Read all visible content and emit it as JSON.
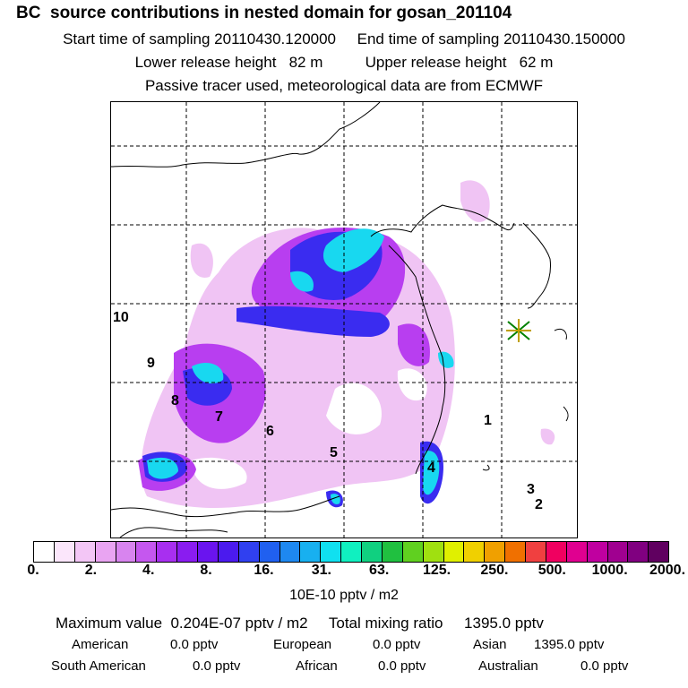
{
  "header": {
    "title": "BC  source contributions in nested domain for gosan_201104",
    "line2": "Start time of sampling 20110430.120000     End time of sampling 20110430.150000",
    "line3": "Lower release height   82 m          Upper release height   62 m",
    "line4": "Passive tracer used, meteorological data are from ECMWF"
  },
  "map": {
    "labels": [
      "10",
      "9",
      "8",
      "7",
      "6",
      "5",
      "4",
      "1",
      "3",
      "2"
    ],
    "receptor_marker": "star-marker"
  },
  "colorbar": {
    "colors": [
      "#ffffff",
      "#fbe6fb",
      "#f3c6f6",
      "#e9a4f2",
      "#d884ef",
      "#c557ef",
      "#a82ff0",
      "#8a1cf0",
      "#6a14ef",
      "#4b1aee",
      "#3040f0",
      "#2060f0",
      "#1e88f0",
      "#18b0f0",
      "#10e0f0",
      "#10f0c0",
      "#10d080",
      "#20c040",
      "#60d020",
      "#a0e010",
      "#e0f000",
      "#f0d000",
      "#f0a000",
      "#f07000",
      "#f04040",
      "#f00060",
      "#e00090",
      "#c000a0",
      "#a00090",
      "#800080",
      "#600060"
    ],
    "ticks": [
      "0.",
      "2.",
      "4.",
      "8.",
      "16.",
      "31.",
      "63.",
      "125.",
      "250.",
      "500.",
      "1000.",
      "2000."
    ],
    "unit": "10E-10 pptv / m2"
  },
  "summary": {
    "max_line": "Maximum value  0.204E-07 pptv / m2     Total mixing ratio     1395.0 pptv",
    "row1": [
      {
        "label": "American",
        "value": "0.0 pptv"
      },
      {
        "label": "European",
        "value": "0.0 pptv"
      },
      {
        "label": "Asian",
        "value": "1395.0 pptv"
      }
    ],
    "row2": [
      {
        "label": "South American",
        "value": "0.0 pptv"
      },
      {
        "label": "African",
        "value": "0.0 pptv"
      },
      {
        "label": "Australian",
        "value": "0.0 pptv"
      }
    ]
  }
}
